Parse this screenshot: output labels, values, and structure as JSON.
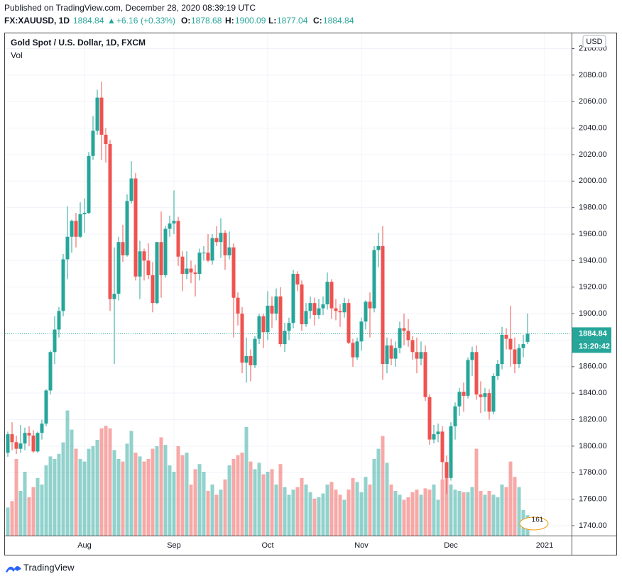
{
  "header": {
    "published": "Published on TradingView.com, December 28, 2020 08:39:19 UTC",
    "symbol": "FX:XAUUSD, 1D",
    "arrow": "▲",
    "change": "+6.16",
    "change_pct": "(+0.33%)",
    "o_label": "O:",
    "h_label": "H:",
    "l_label": "L:",
    "c_label": "C:"
  },
  "footer": {
    "brand": "TradingView"
  },
  "chart_data": {
    "type": "candlestick",
    "title": "Gold Spot / U.S. Dollar, 1D, FXCM",
    "volume_label": "Vol",
    "currency": "USD",
    "countdown": "13:20:42",
    "badge": "161",
    "up_color": "#26a69a",
    "down_color": "#ef5350",
    "volume_up_color": "rgba(38,166,154,0.5)",
    "volume_down_color": "rgba(239,83,80,0.5)",
    "grid": true,
    "ylim": [
      1732.5,
      2111.5
    ],
    "yticks": [
      {
        "value": 1740,
        "label": "1740.00"
      },
      {
        "value": 1760,
        "label": "1760.00"
      },
      {
        "value": 1780,
        "label": "1780.00"
      },
      {
        "value": 1800,
        "label": "1800.00"
      },
      {
        "value": 1820,
        "label": "1820.00"
      },
      {
        "value": 1840,
        "label": "1840.00"
      },
      {
        "value": 1860,
        "label": "1860.00"
      },
      {
        "value": 1880,
        "label": "1880.00"
      },
      {
        "value": 1900,
        "label": "1900.00"
      },
      {
        "value": 1920,
        "label": "1920.00"
      },
      {
        "value": 1940,
        "label": "1940.00"
      },
      {
        "value": 1960,
        "label": "1960.00"
      },
      {
        "value": 1980,
        "label": "1980.00"
      },
      {
        "value": 2000,
        "label": "2000.00"
      },
      {
        "value": 2020,
        "label": "2020.00"
      },
      {
        "value": 2040,
        "label": "2040.00"
      },
      {
        "value": 2060,
        "label": "2060.00"
      },
      {
        "value": 2080,
        "label": "2080.00"
      },
      {
        "value": 2100,
        "label": "2100.00"
      }
    ],
    "volume_ylim": [
      0,
      100
    ],
    "categories": [
      null,
      null,
      null,
      null,
      null,
      null,
      null,
      null,
      null,
      null,
      null,
      null,
      null,
      null,
      null,
      null,
      null,
      null,
      "Aug",
      null,
      null,
      null,
      null,
      null,
      null,
      null,
      null,
      null,
      null,
      null,
      null,
      null,
      null,
      null,
      null,
      null,
      null,
      null,
      null,
      "Sep",
      null,
      null,
      null,
      null,
      null,
      null,
      null,
      null,
      null,
      null,
      null,
      null,
      null,
      null,
      null,
      null,
      null,
      null,
      null,
      null,
      null,
      "Oct",
      null,
      null,
      null,
      null,
      null,
      null,
      null,
      null,
      null,
      null,
      null,
      null,
      null,
      null,
      null,
      null,
      null,
      null,
      null,
      null,
      null,
      "Nov",
      null,
      null,
      null,
      null,
      null,
      null,
      null,
      null,
      null,
      null,
      null,
      null,
      null,
      null,
      null,
      null,
      null,
      null,
      null,
      null,
      "Dec",
      null,
      null,
      null,
      null,
      null,
      null,
      null,
      null,
      null,
      null,
      null,
      null,
      null,
      null,
      null,
      null,
      null,
      null,
      null,
      null,
      null,
      "2021"
    ],
    "ohlc": [
      [
        1795,
        1811,
        1792,
        1809
      ],
      [
        1809,
        1818,
        1797,
        1803
      ],
      [
        1803,
        1808,
        1794,
        1798
      ],
      [
        1798,
        1816,
        1795,
        1802
      ],
      [
        1802,
        1814,
        1797,
        1810
      ],
      [
        1810,
        1815,
        1800,
        1808
      ],
      [
        1808,
        1812,
        1795,
        1796
      ],
      [
        1796,
        1811,
        1795,
        1810
      ],
      [
        1810,
        1820,
        1805,
        1817
      ],
      [
        1817,
        1843,
        1815,
        1842
      ],
      [
        1842,
        1872,
        1839,
        1871
      ],
      [
        1871,
        1898,
        1862,
        1888
      ],
      [
        1888,
        1905,
        1882,
        1902
      ],
      [
        1902,
        1945,
        1898,
        1941
      ],
      [
        1941,
        1981,
        1926,
        1958
      ],
      [
        1958,
        1971,
        1946,
        1970
      ],
      [
        1970,
        1976,
        1950,
        1958
      ],
      [
        1958,
        1984,
        1957,
        1975
      ],
      [
        1975,
        1987,
        1961,
        1976
      ],
      [
        1976,
        2022,
        1975,
        2019
      ],
      [
        2019,
        2049,
        2016,
        2038
      ],
      [
        2038,
        2069,
        2035,
        2063
      ],
      [
        2063,
        2075,
        2016,
        2035
      ],
      [
        2035,
        2040,
        2014,
        2028
      ],
      [
        2028,
        2031,
        1902,
        1911
      ],
      [
        1911,
        1950,
        1862,
        1915
      ],
      [
        1915,
        1958,
        1910,
        1954
      ],
      [
        1954,
        1967,
        1939,
        1944
      ],
      [
        1944,
        1990,
        1943,
        1985
      ],
      [
        1985,
        2015,
        1983,
        2002
      ],
      [
        2002,
        2006,
        1925,
        1928
      ],
      [
        1928,
        1955,
        1911,
        1947
      ],
      [
        1947,
        1949,
        1925,
        1940
      ],
      [
        1940,
        1953,
        1926,
        1929
      ],
      [
        1929,
        1939,
        1901,
        1908
      ],
      [
        1908,
        1954,
        1907,
        1954
      ],
      [
        1954,
        1977,
        1912,
        1929
      ],
      [
        1929,
        1966,
        1927,
        1964
      ],
      [
        1964,
        1974,
        1958,
        1968
      ],
      [
        1968,
        1993,
        1960,
        1970
      ],
      [
        1970,
        1973,
        1936,
        1943
      ],
      [
        1943,
        1947,
        1917,
        1930
      ],
      [
        1930,
        1947,
        1926,
        1934
      ],
      [
        1934,
        1940,
        1923,
        1931
      ],
      [
        1931,
        1937,
        1913,
        1930
      ],
      [
        1930,
        1949,
        1925,
        1946
      ],
      [
        1946,
        1951,
        1940,
        1946
      ],
      [
        1946,
        1960,
        1939,
        1940
      ],
      [
        1940,
        1960,
        1937,
        1957
      ],
      [
        1957,
        1966,
        1951,
        1954
      ],
      [
        1954,
        1972,
        1942,
        1961
      ],
      [
        1961,
        1963,
        1933,
        1944
      ],
      [
        1944,
        1962,
        1941,
        1950
      ],
      [
        1950,
        1953,
        1882,
        1912
      ],
      [
        1912,
        1916,
        1891,
        1900
      ],
      [
        1900,
        1905,
        1855,
        1863
      ],
      [
        1863,
        1882,
        1848,
        1868
      ],
      [
        1868,
        1873,
        1849,
        1861
      ],
      [
        1861,
        1883,
        1859,
        1881
      ],
      [
        1881,
        1900,
        1877,
        1898
      ],
      [
        1898,
        1900,
        1874,
        1886
      ],
      [
        1886,
        1917,
        1880,
        1906
      ],
      [
        1906,
        1913,
        1889,
        1900
      ],
      [
        1900,
        1919,
        1895,
        1913
      ],
      [
        1913,
        1920,
        1875,
        1877
      ],
      [
        1877,
        1893,
        1871,
        1887
      ],
      [
        1887,
        1897,
        1880,
        1893
      ],
      [
        1893,
        1933,
        1889,
        1930
      ],
      [
        1930,
        1932,
        1917,
        1922
      ],
      [
        1922,
        1925,
        1887,
        1892
      ],
      [
        1892,
        1908,
        1890,
        1902
      ],
      [
        1902,
        1913,
        1896,
        1908
      ],
      [
        1908,
        1912,
        1891,
        1899
      ],
      [
        1899,
        1911,
        1896,
        1904
      ],
      [
        1904,
        1913,
        1899,
        1907
      ],
      [
        1907,
        1931,
        1903,
        1924
      ],
      [
        1924,
        1926,
        1896,
        1904
      ],
      [
        1904,
        1911,
        1895,
        1902
      ],
      [
        1902,
        1907,
        1890,
        1901
      ],
      [
        1901,
        1912,
        1897,
        1908
      ],
      [
        1908,
        1911,
        1877,
        1878
      ],
      [
        1878,
        1881,
        1860,
        1867
      ],
      [
        1867,
        1882,
        1865,
        1879
      ],
      [
        1879,
        1897,
        1872,
        1894
      ],
      [
        1894,
        1910,
        1888,
        1909
      ],
      [
        1909,
        1916,
        1882,
        1904
      ],
      [
        1904,
        1951,
        1901,
        1948
      ],
      [
        1948,
        1961,
        1935,
        1951
      ],
      [
        1951,
        1966,
        1850,
        1862
      ],
      [
        1862,
        1882,
        1855,
        1876
      ],
      [
        1876,
        1881,
        1861,
        1866
      ],
      [
        1866,
        1879,
        1860,
        1874
      ],
      [
        1874,
        1894,
        1870,
        1889
      ],
      [
        1889,
        1900,
        1876,
        1887
      ],
      [
        1887,
        1896,
        1875,
        1880
      ],
      [
        1880,
        1883,
        1865,
        1871
      ],
      [
        1871,
        1882,
        1855,
        1866
      ],
      [
        1866,
        1879,
        1861,
        1871
      ],
      [
        1871,
        1876,
        1834,
        1837
      ],
      [
        1837,
        1839,
        1801,
        1805
      ],
      [
        1805,
        1816,
        1802,
        1809
      ],
      [
        1809,
        1817,
        1803,
        1811
      ],
      [
        1811,
        1815,
        1775,
        1788
      ],
      [
        1788,
        1793,
        1764,
        1776
      ],
      [
        1776,
        1818,
        1774,
        1815
      ],
      [
        1815,
        1833,
        1805,
        1830
      ],
      [
        1830,
        1844,
        1823,
        1841
      ],
      [
        1841,
        1848,
        1826,
        1838
      ],
      [
        1838,
        1867,
        1836,
        1865
      ],
      [
        1865,
        1875,
        1853,
        1871
      ],
      [
        1871,
        1876,
        1835,
        1839
      ],
      [
        1839,
        1849,
        1825,
        1837
      ],
      [
        1837,
        1844,
        1826,
        1840
      ],
      [
        1840,
        1843,
        1820,
        1826
      ],
      [
        1826,
        1855,
        1824,
        1853
      ],
      [
        1853,
        1865,
        1850,
        1862
      ],
      [
        1862,
        1890,
        1858,
        1884
      ],
      [
        1884,
        1889,
        1873,
        1881
      ],
      [
        1881,
        1906,
        1860,
        1873
      ],
      [
        1873,
        1882,
        1855,
        1862
      ],
      [
        1862,
        1877,
        1859,
        1874
      ],
      [
        1874,
        1884,
        1867,
        1877
      ],
      [
        1878.68,
        1900.09,
        1877.04,
        1884.84
      ],
      null,
      null,
      null,
      null
    ],
    "volume": [
      22,
      27,
      60,
      35,
      50,
      30,
      38,
      45,
      40,
      55,
      62,
      60,
      64,
      73,
      98,
      83,
      68,
      60,
      58,
      68,
      70,
      75,
      84,
      86,
      84,
      67,
      60,
      58,
      72,
      82,
      65,
      62,
      58,
      60,
      68,
      70,
      77,
      71,
      55,
      50,
      70,
      63,
      65,
      40,
      52,
      56,
      50,
      35,
      40,
      32,
      36,
      44,
      55,
      60,
      63,
      65,
      85,
      58,
      52,
      57,
      48,
      50,
      52,
      40,
      56,
      38,
      32,
      36,
      38,
      45,
      40,
      34,
      29,
      30,
      33,
      40,
      42,
      36,
      32,
      28,
      36,
      45,
      42,
      34,
      46,
      40,
      60,
      68,
      78,
      57,
      40,
      35,
      32,
      28,
      30,
      34,
      36,
      32,
      37,
      36,
      40,
      28,
      44,
      56,
      40,
      36,
      35,
      34,
      34,
      38,
      68,
      35,
      32,
      35,
      32,
      30,
      40,
      38,
      58,
      46,
      38,
      20,
      16,
      null,
      null,
      null,
      null
    ]
  }
}
